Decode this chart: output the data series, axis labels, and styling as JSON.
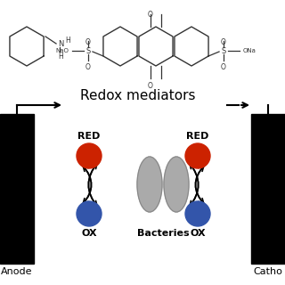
{
  "background_color": "#ffffff",
  "title": "Redox mediators",
  "title_fontsize": 11,
  "text_color": "#000000",
  "electrode_color": "#000000",
  "red_color": "#cc2200",
  "blue_color": "#3355aa",
  "bacteria_color": "#aaaaaa",
  "bacteria_edge": "#888888",
  "anode_label": "Anode",
  "cathode_label": "Catho",
  "red_label": "RED",
  "ox_label": "OX",
  "bacteria_label": "Bacteries",
  "mol_line_color": "#333333"
}
